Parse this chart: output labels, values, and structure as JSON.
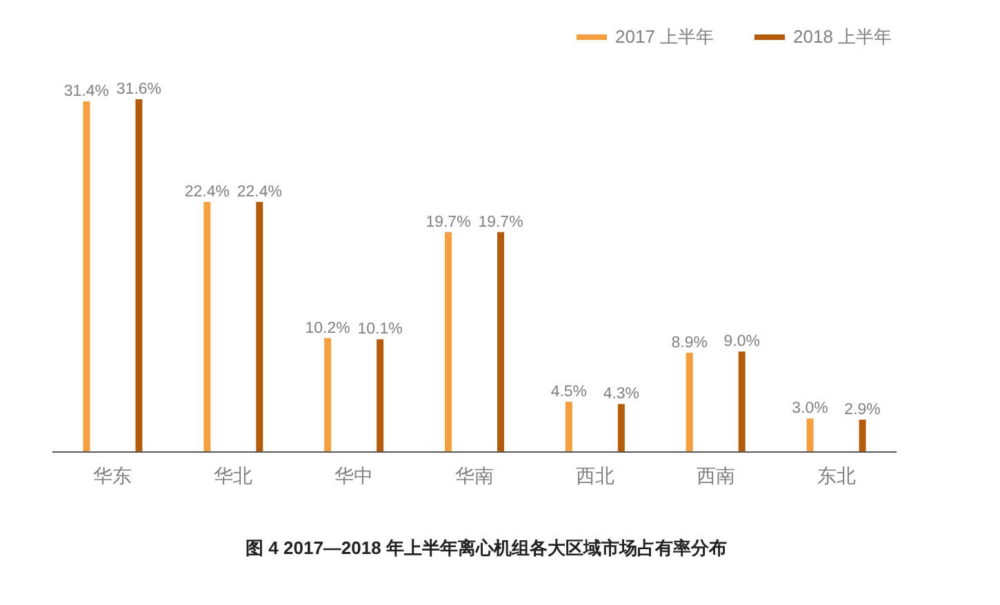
{
  "chart_data": {
    "type": "bar",
    "title": "图 4   2017—2018 年上半年离心机组各大区域市场占有率分布",
    "categories": [
      "华东",
      "华北",
      "华中",
      "华南",
      "西北",
      "西南",
      "东北"
    ],
    "series": [
      {
        "name": "2017 上半年",
        "color": "#f5a040",
        "values": [
          31.4,
          22.4,
          10.2,
          19.7,
          4.5,
          8.9,
          3.0
        ],
        "value_labels": [
          "31.4%",
          "22.4%",
          "10.2%",
          "19.7%",
          "4.5%",
          "8.9%",
          "3.0%"
        ]
      },
      {
        "name": "2018 上半年",
        "color": "#b35c0c",
        "values": [
          31.6,
          22.4,
          10.1,
          19.7,
          4.3,
          9.0,
          2.9
        ],
        "value_labels": [
          "31.6%",
          "22.4%",
          "10.1%",
          "19.7%",
          "4.3%",
          "9.0%",
          "2.9%"
        ]
      }
    ],
    "legend": "top right",
    "tick_labels": "x"
  }
}
